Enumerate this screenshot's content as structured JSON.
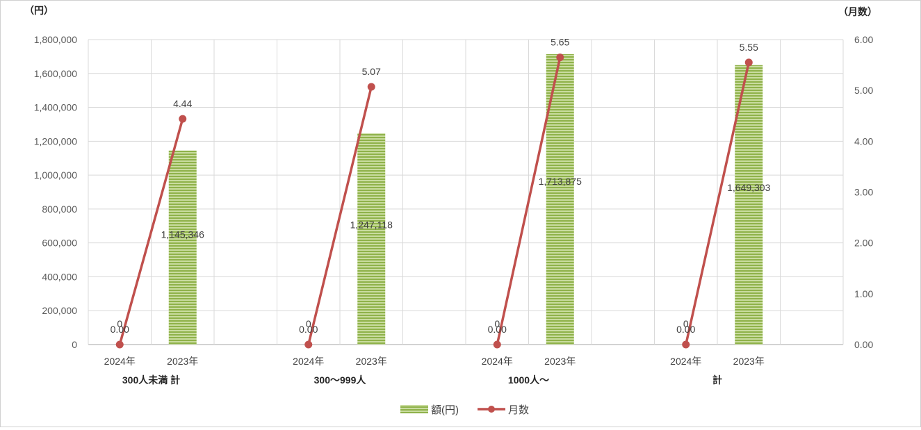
{
  "chart_data": {
    "type": "bar+line",
    "left_axis_unit": "（円）",
    "right_axis_unit": "（月数）",
    "y_left": {
      "min": 0,
      "max": 1800000,
      "step": 200000,
      "ticks": [
        "0",
        "200,000",
        "400,000",
        "600,000",
        "800,000",
        "1,000,000",
        "1,200,000",
        "1,400,000",
        "1,600,000",
        "1,800,000"
      ]
    },
    "y_right": {
      "min": 0,
      "max": 6,
      "step": 1,
      "ticks": [
        "0.00",
        "1.00",
        "2.00",
        "3.00",
        "4.00",
        "5.00",
        "6.00"
      ]
    },
    "groups": [
      {
        "label": "300人未満 計",
        "categories": [
          "2024年",
          "2023年"
        ]
      },
      {
        "label": "300～999人",
        "categories": [
          "2024年",
          "2023年"
        ]
      },
      {
        "label": "1000人～",
        "categories": [
          "2024年",
          "2023年"
        ]
      },
      {
        "label": "計",
        "categories": [
          "2024年",
          "2023年"
        ]
      }
    ],
    "series": [
      {
        "name": "額(円)",
        "type": "bar",
        "axis": "left",
        "color": "#9bbb59",
        "values": [
          [
            0,
            1145346
          ],
          [
            0,
            1247118
          ],
          [
            0,
            1713875
          ],
          [
            0,
            1649303
          ]
        ],
        "labels": [
          [
            "0",
            "1,145,346"
          ],
          [
            "0",
            "1,247,118"
          ],
          [
            "0",
            "1,713,875"
          ],
          [
            "0",
            "1,649,303"
          ]
        ]
      },
      {
        "name": "月数",
        "type": "line",
        "axis": "right",
        "color": "#c0504d",
        "values": [
          [
            0.0,
            4.44
          ],
          [
            0.0,
            5.07
          ],
          [
            0.0,
            5.65
          ],
          [
            0.0,
            5.55
          ]
        ],
        "labels": [
          [
            "0.00",
            "4.44"
          ],
          [
            "0.00",
            "5.07"
          ],
          [
            "0.00",
            "5.65"
          ],
          [
            "0.00",
            "5.55"
          ]
        ]
      }
    ],
    "grid": true,
    "legend_position": "bottom"
  }
}
